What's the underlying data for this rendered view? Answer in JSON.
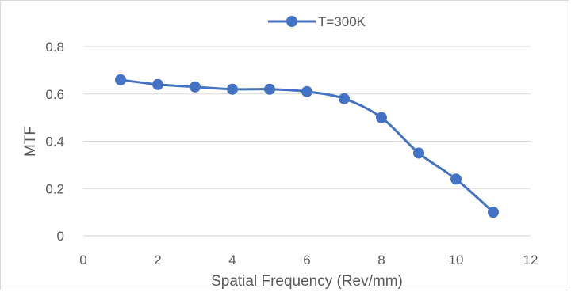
{
  "chart_data": {
    "type": "line",
    "title": "",
    "xlabel": "Spatial Frequency (Rev/mm)",
    "ylabel": "MTF",
    "xlim": [
      0,
      12
    ],
    "ylim": [
      0,
      0.8
    ],
    "xticks": [
      0,
      2,
      4,
      6,
      8,
      10,
      12
    ],
    "yticks": [
      0,
      0.2,
      0.4,
      0.6,
      0.8
    ],
    "xtick_labels": [
      "0",
      "2",
      "4",
      "6",
      "8",
      "10",
      "12"
    ],
    "ytick_labels": [
      "0",
      "0.2",
      "0.4",
      "0.6",
      "0.8"
    ],
    "grid": "horizontal",
    "legend_position": "top-center",
    "smooth": true,
    "series": [
      {
        "name": "T=300K",
        "color": "#4472c4",
        "marker": "circle",
        "x": [
          1,
          2,
          3,
          4,
          5,
          6,
          7,
          8,
          9,
          10,
          11
        ],
        "y": [
          0.66,
          0.64,
          0.63,
          0.62,
          0.62,
          0.61,
          0.58,
          0.5,
          0.35,
          0.24,
          0.1
        ]
      }
    ]
  }
}
